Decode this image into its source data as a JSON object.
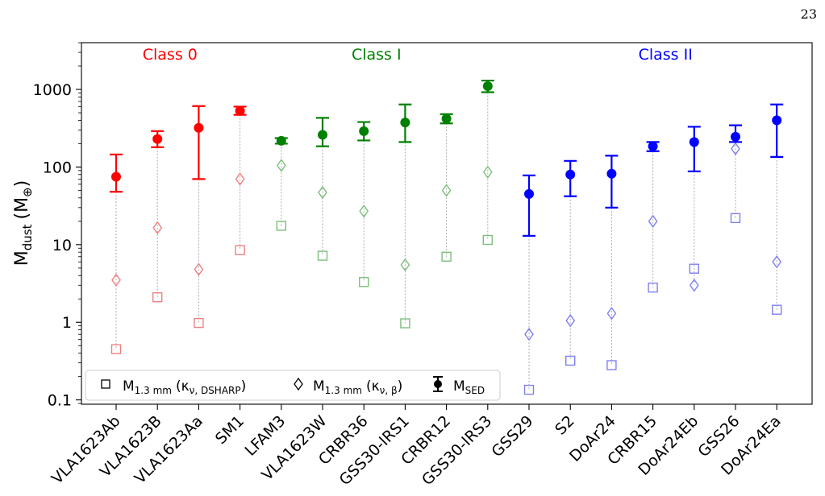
{
  "page_number": "23",
  "chart_data": {
    "type": "scatter",
    "ylabel_main": "M",
    "ylabel_sub": "dust",
    "ylabel_unit": "(M",
    "ylabel_unit_sub": "⊕",
    "ylabel_close": ")",
    "yscale": "log",
    "ylim": [
      0.088,
      4000
    ],
    "yticks": [
      {
        "value": 0.1,
        "label": "0.1"
      },
      {
        "value": 1,
        "label": "1"
      },
      {
        "value": 10,
        "label": "10"
      },
      {
        "value": 100,
        "label": "100"
      },
      {
        "value": 1000,
        "label": "1000"
      }
    ],
    "classes": [
      {
        "label": "Class 0",
        "color": "#ff0000",
        "center_index": 1.5
      },
      {
        "label": "Class I",
        "color": "#008000",
        "center_index": 6.5
      },
      {
        "label": "Class II",
        "color": "#0000ff",
        "center_index": 13.5
      }
    ],
    "sources": [
      {
        "name": "VLA1623Ab",
        "class": 0,
        "sed": 75,
        "sed_lo": 48,
        "sed_hi": 145,
        "beta": 3.5,
        "dsharp": 0.45
      },
      {
        "name": "VLA1623B",
        "class": 0,
        "sed": 230,
        "sed_lo": 180,
        "sed_hi": 290,
        "beta": 16.5,
        "dsharp": 2.1
      },
      {
        "name": "VLA1623Aa",
        "class": 0,
        "sed": 320,
        "sed_lo": 70,
        "sed_hi": 610,
        "beta": 4.8,
        "dsharp": 0.98
      },
      {
        "name": "SM1",
        "class": 0,
        "sed": 530,
        "sed_lo": 470,
        "sed_hi": 600,
        "beta": 70,
        "dsharp": 8.5
      },
      {
        "name": "LFAM3",
        "class": 1,
        "sed": 218,
        "sed_lo": 200,
        "sed_hi": 236,
        "beta": 105,
        "dsharp": 17.5
      },
      {
        "name": "VLA1623W",
        "class": 1,
        "sed": 260,
        "sed_lo": 185,
        "sed_hi": 430,
        "beta": 47,
        "dsharp": 7.2
      },
      {
        "name": "CRBR36",
        "class": 1,
        "sed": 290,
        "sed_lo": 220,
        "sed_hi": 380,
        "beta": 27,
        "dsharp": 3.3
      },
      {
        "name": "GSS30-IRS1",
        "class": 1,
        "sed": 375,
        "sed_lo": 210,
        "sed_hi": 640,
        "beta": 5.5,
        "dsharp": 0.97
      },
      {
        "name": "CRBR12",
        "class": 1,
        "sed": 420,
        "sed_lo": 365,
        "sed_hi": 480,
        "beta": 50,
        "dsharp": 7.0
      },
      {
        "name": "GSS30-IRS3",
        "class": 1,
        "sed": 1100,
        "sed_lo": 920,
        "sed_hi": 1300,
        "beta": 86,
        "dsharp": 11.5
      },
      {
        "name": "GSS29",
        "class": 2,
        "sed": 45,
        "sed_lo": 13,
        "sed_hi": 78,
        "beta": 0.7,
        "dsharp": 0.135
      },
      {
        "name": "S2",
        "class": 2,
        "sed": 80,
        "sed_lo": 42,
        "sed_hi": 120,
        "beta": 1.05,
        "dsharp": 0.32
      },
      {
        "name": "DoAr24",
        "class": 2,
        "sed": 82,
        "sed_lo": 30,
        "sed_hi": 140,
        "beta": 1.3,
        "dsharp": 0.28
      },
      {
        "name": "CRBR15",
        "class": 2,
        "sed": 185,
        "sed_lo": 160,
        "sed_hi": 210,
        "beta": 20,
        "dsharp": 2.8
      },
      {
        "name": "DoAr24Eb",
        "class": 2,
        "sed": 210,
        "sed_lo": 88,
        "sed_hi": 330,
        "beta": 3.0,
        "dsharp": 4.9
      },
      {
        "name": "GSS26",
        "class": 2,
        "sed": 245,
        "sed_lo": 210,
        "sed_hi": 345,
        "beta": 172,
        "dsharp": 22
      },
      {
        "name": "DoAr24Ea",
        "class": 2,
        "sed": 400,
        "sed_lo": 135,
        "sed_hi": 640,
        "beta": 6.0,
        "dsharp": 1.45
      }
    ],
    "legend": {
      "placement": "lower-left",
      "entries": [
        {
          "marker": "square",
          "label_main": "M",
          "label_sub": "1.3 mm",
          "label_rest": "(κ",
          "label_rest_sub": "ν, DSHARP",
          "label_close": ")"
        },
        {
          "marker": "diamond",
          "label_main": "M",
          "label_sub": "1.3 mm",
          "label_rest": "(κ",
          "label_rest_sub": "ν, β",
          "label_close": ")"
        },
        {
          "marker": "errorbar-dot",
          "label_main": "M",
          "label_sub": "SED"
        }
      ]
    }
  }
}
